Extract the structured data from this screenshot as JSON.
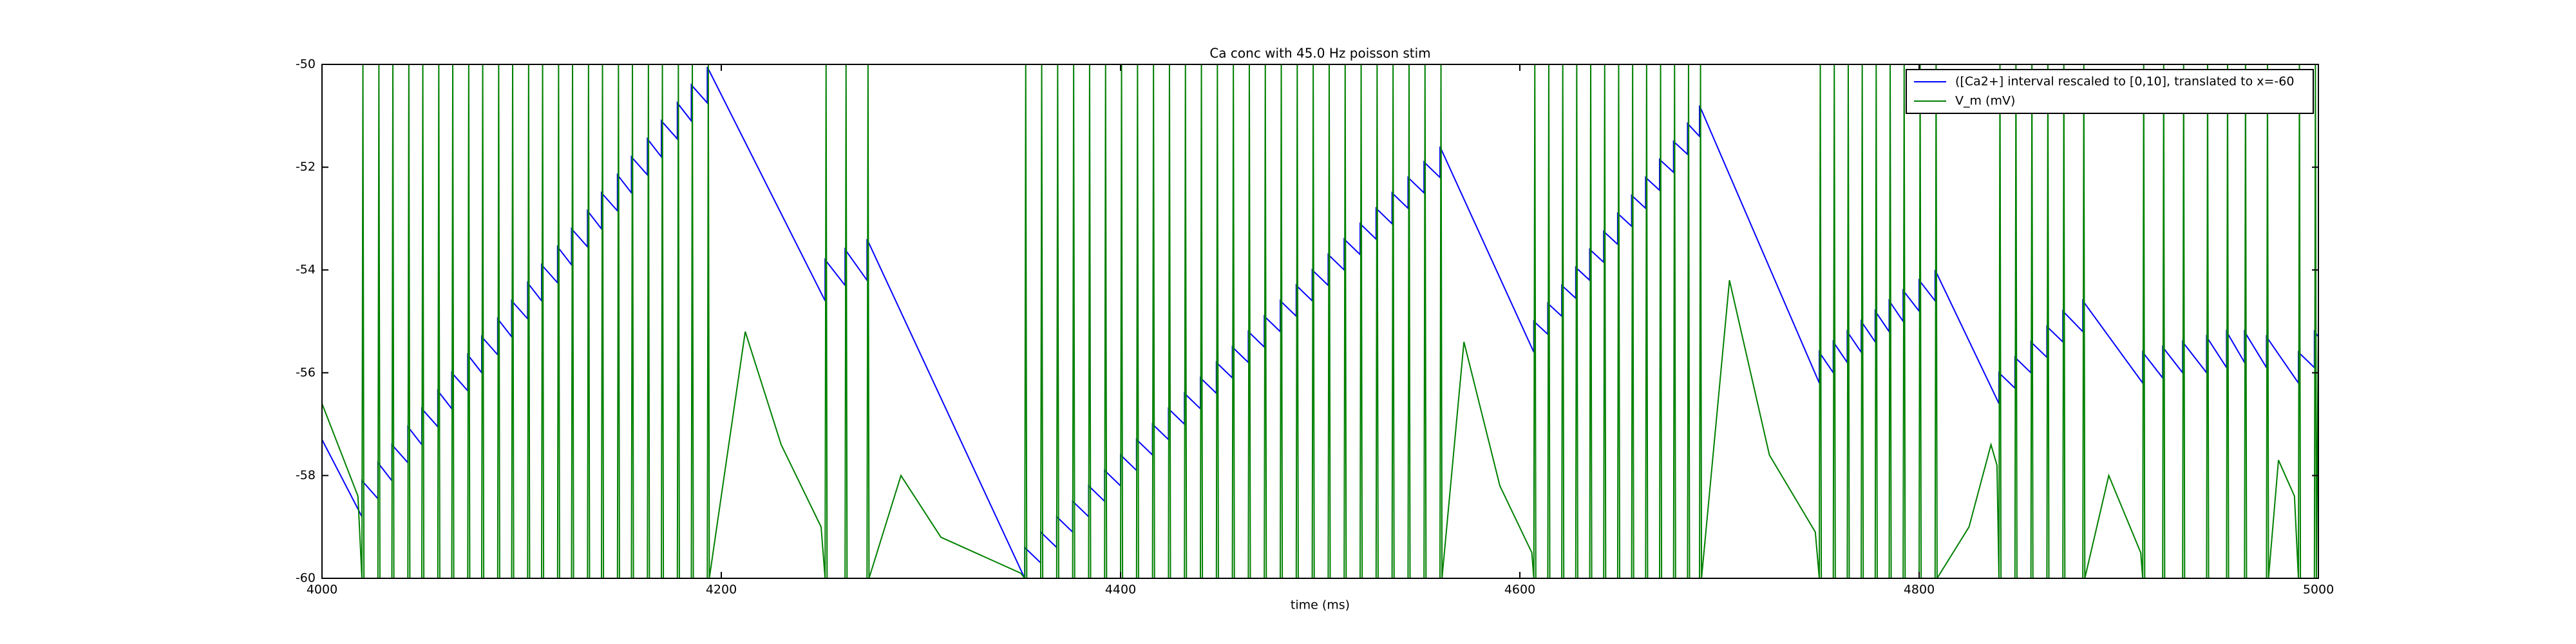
{
  "chart_data": {
    "type": "line",
    "title": "Ca conc with 45.0 Hz poisson stim",
    "xlabel": "time (ms)",
    "xlim": [
      4000,
      5000
    ],
    "ylim": [
      -60,
      -50
    ],
    "xticks": [
      4000,
      4200,
      4400,
      4600,
      4800,
      5000
    ],
    "yticks": [
      -60,
      -58,
      -56,
      -54,
      -52,
      -50
    ],
    "legend": "upper right",
    "series": [
      {
        "name": "([Ca2+] interval rescaled to [0,10], translated to x=-60",
        "color": "#0000ff",
        "x": [
          4000,
          4020,
          4020,
          4028,
          4028,
          4035,
          4035,
          4043,
          4043,
          4050,
          4050,
          4058,
          4058,
          4065,
          4065,
          4073,
          4073,
          4080,
          4080,
          4088,
          4088,
          4095,
          4095,
          4103,
          4103,
          4110,
          4110,
          4118,
          4118,
          4125,
          4125,
          4133,
          4133,
          4140,
          4140,
          4148,
          4148,
          4155,
          4155,
          4163,
          4163,
          4170,
          4170,
          4178,
          4178,
          4185,
          4185,
          4193,
          4193,
          4252,
          4252,
          4262,
          4262,
          4273,
          4273,
          4352,
          4352,
          4360,
          4360,
          4368,
          4368,
          4376,
          4376,
          4384,
          4384,
          4392,
          4392,
          4400,
          4400,
          4408,
          4408,
          4416,
          4416,
          4424,
          4424,
          4432,
          4432,
          4440,
          4440,
          4448,
          4448,
          4456,
          4456,
          4464,
          4464,
          4472,
          4472,
          4480,
          4480,
          4488,
          4488,
          4496,
          4496,
          4504,
          4504,
          4512,
          4512,
          4520,
          4520,
          4528,
          4528,
          4536,
          4536,
          4544,
          4544,
          4552,
          4552,
          4560,
          4560,
          4607,
          4607,
          4614,
          4614,
          4621,
          4621,
          4628,
          4628,
          4635,
          4635,
          4642,
          4642,
          4649,
          4649,
          4656,
          4656,
          4663,
          4663,
          4670,
          4670,
          4677,
          4677,
          4684,
          4684,
          4690,
          4690,
          4750,
          4750,
          4757,
          4757,
          4764,
          4764,
          4771,
          4771,
          4778,
          4778,
          4785,
          4785,
          4792,
          4792,
          4800,
          4800,
          4808,
          4808,
          4840,
          4840,
          4848,
          4848,
          4856,
          4856,
          4864,
          4864,
          4872,
          4872,
          4882,
          4882,
          4912,
          4912,
          4922,
          4922,
          4932,
          4932,
          4944,
          4944,
          4954,
          4954,
          4963,
          4963,
          4974,
          4974,
          4990,
          4990,
          4998,
          4998,
          5000
        ],
        "values": [
          -57.3,
          -58.8,
          -58.1,
          -58.45,
          -57.75,
          -58.1,
          -57.4,
          -57.75,
          -57.05,
          -57.4,
          -56.7,
          -57.05,
          -56.35,
          -56.7,
          -56.0,
          -56.35,
          -55.65,
          -56.0,
          -55.3,
          -55.65,
          -54.95,
          -55.3,
          -54.6,
          -54.95,
          -54.25,
          -54.6,
          -53.9,
          -54.25,
          -53.55,
          -53.9,
          -53.2,
          -53.55,
          -52.85,
          -53.2,
          -52.5,
          -52.85,
          -52.15,
          -52.5,
          -51.8,
          -52.15,
          -51.45,
          -51.8,
          -51.1,
          -51.45,
          -50.75,
          -51.1,
          -50.4,
          -50.75,
          -50.05,
          -54.6,
          -53.8,
          -54.3,
          -53.6,
          -54.2,
          -53.4,
          -60,
          -59.4,
          -59.7,
          -59.1,
          -59.4,
          -58.8,
          -59.1,
          -58.5,
          -58.8,
          -58.2,
          -58.5,
          -57.9,
          -58.2,
          -57.6,
          -57.9,
          -57.3,
          -57.6,
          -57.0,
          -57.3,
          -56.7,
          -57.0,
          -56.4,
          -56.7,
          -56.1,
          -56.4,
          -55.8,
          -56.1,
          -55.5,
          -55.8,
          -55.2,
          -55.5,
          -54.9,
          -55.2,
          -54.6,
          -54.9,
          -54.3,
          -54.6,
          -54.0,
          -54.3,
          -53.7,
          -54.0,
          -53.4,
          -53.7,
          -53.1,
          -53.4,
          -52.8,
          -53.1,
          -52.5,
          -52.8,
          -52.2,
          -52.5,
          -51.9,
          -52.2,
          -51.6,
          -55.6,
          -55.0,
          -55.25,
          -54.65,
          -54.9,
          -54.3,
          -54.55,
          -53.95,
          -54.2,
          -53.6,
          -53.85,
          -53.25,
          -53.5,
          -52.9,
          -53.15,
          -52.55,
          -52.8,
          -52.2,
          -52.45,
          -51.85,
          -52.1,
          -51.5,
          -51.75,
          -51.15,
          -51.4,
          -50.8,
          -56.2,
          -55.6,
          -56.0,
          -55.4,
          -55.8,
          -55.2,
          -55.6,
          -55.0,
          -55.4,
          -54.8,
          -55.2,
          -54.6,
          -55.0,
          -54.4,
          -54.8,
          -54.2,
          -54.6,
          -54.0,
          -56.6,
          -56.0,
          -56.3,
          -55.7,
          -56.0,
          -55.4,
          -55.7,
          -55.1,
          -55.4,
          -54.8,
          -55.2,
          -54.6,
          -56.2,
          -55.6,
          -56.1,
          -55.5,
          -56.0,
          -55.4,
          -56.0,
          -55.3,
          -55.9,
          -55.2,
          -55.8,
          -55.2,
          -55.9,
          -55.3,
          -56.2,
          -55.6,
          -55.9,
          -55.2,
          -55.3
        ]
      },
      {
        "name": "V_m (mV)",
        "color": "#008000",
        "x": [
          4000,
          4018,
          4020,
          4020.5,
          4021,
          4028,
          4028.5,
          4029,
          4035,
          4035.5,
          4036,
          4043,
          4043.5,
          4044,
          4050,
          4050.5,
          4051,
          4058,
          4058.5,
          4059,
          4065,
          4065.5,
          4066,
          4073,
          4073.5,
          4074,
          4080,
          4080.5,
          4081,
          4088,
          4088.5,
          4089,
          4095,
          4095.5,
          4096,
          4103,
          4103.5,
          4104,
          4110,
          4110.5,
          4111,
          4118,
          4118.5,
          4119,
          4125,
          4125.5,
          4126,
          4133,
          4133.5,
          4134,
          4140,
          4140.5,
          4141,
          4148,
          4148.5,
          4149,
          4155,
          4155.5,
          4156,
          4163,
          4163.5,
          4164,
          4170,
          4170.5,
          4171,
          4178,
          4178.5,
          4179,
          4185,
          4185.5,
          4186,
          4193,
          4193.5,
          4194,
          4212,
          4230,
          4250,
          4252,
          4252.5,
          4253,
          4262,
          4262.5,
          4263,
          4273,
          4273.5,
          4274,
          4290,
          4310,
          4350,
          4352,
          4352.5,
          4353,
          4360,
          4360.5,
          4361,
          4368,
          4368.5,
          4369,
          4376,
          4376.5,
          4377,
          4384,
          4384.5,
          4385,
          4392,
          4392.5,
          4393,
          4400,
          4400.5,
          4401,
          4408,
          4408.5,
          4409,
          4416,
          4416.5,
          4417,
          4424,
          4424.5,
          4425,
          4432,
          4432.5,
          4433,
          4440,
          4440.5,
          4441,
          4448,
          4448.5,
          4449,
          4456,
          4456.5,
          4457,
          4464,
          4464.5,
          4465,
          4472,
          4472.5,
          4473,
          4480,
          4480.5,
          4481,
          4488,
          4488.5,
          4489,
          4496,
          4496.5,
          4497,
          4504,
          4504.5,
          4505,
          4512,
          4512.5,
          4513,
          4520,
          4520.5,
          4521,
          4528,
          4528.5,
          4529,
          4536,
          4536.5,
          4537,
          4544,
          4544.5,
          4545,
          4552,
          4552.5,
          4553,
          4560,
          4560.5,
          4561,
          4572,
          4590,
          4606,
          4607,
          4607.5,
          4608,
          4614,
          4614.5,
          4615,
          4621,
          4621.5,
          4622,
          4628,
          4628.5,
          4629,
          4635,
          4635.5,
          4636,
          4642,
          4642.5,
          4643,
          4649,
          4649.5,
          4650,
          4656,
          4656.5,
          4657,
          4663,
          4663.5,
          4664,
          4670,
          4670.5,
          4671,
          4677,
          4677.5,
          4678,
          4684,
          4684.5,
          4685,
          4690,
          4690.5,
          4691,
          4705,
          4725,
          4748,
          4750,
          4750.5,
          4751,
          4757,
          4757.5,
          4758,
          4764,
          4764.5,
          4765,
          4771,
          4771.5,
          4772,
          4778,
          4778.5,
          4779,
          4785,
          4785.5,
          4786,
          4792,
          4792.5,
          4793,
          4800,
          4800.5,
          4801,
          4808,
          4808.5,
          4809,
          4825,
          4836,
          4839,
          4840,
          4840.5,
          4841,
          4848,
          4848.5,
          4849,
          4856,
          4856.5,
          4857,
          4864,
          4864.5,
          4865,
          4872,
          4872.5,
          4873,
          4882,
          4882.5,
          4883,
          4895,
          4911,
          4912,
          4912.5,
          4913,
          4922,
          4922.5,
          4923,
          4932,
          4932.5,
          4933,
          4944,
          4944.5,
          4945,
          4954,
          4954.5,
          4955,
          4963,
          4963.5,
          4964,
          4974,
          4974.5,
          4975,
          4980,
          4988,
          4990,
          4990.5,
          4991,
          4998,
          4998.5,
          4999,
          5000
        ],
        "values": [
          -56.6,
          -58.4,
          -60,
          -50,
          -60,
          -60,
          -50,
          -60,
          -60,
          -50,
          -60,
          -60,
          -50,
          -60,
          -60,
          -50,
          -60,
          -60,
          -50,
          -60,
          -60,
          -50,
          -60,
          -60,
          -50,
          -60,
          -60,
          -50,
          -60,
          -60,
          -50,
          -60,
          -60,
          -50,
          -60,
          -60,
          -50,
          -60,
          -60,
          -50,
          -60,
          -60,
          -50,
          -60,
          -60,
          -50,
          -60,
          -60,
          -50,
          -60,
          -60,
          -50,
          -60,
          -60,
          -50,
          -60,
          -60,
          -50,
          -60,
          -60,
          -50,
          -60,
          -60,
          -50,
          -60,
          -60,
          -50,
          -60,
          -60,
          -50,
          -60,
          -60,
          -50,
          -60,
          -55.2,
          -57.4,
          -59,
          -60,
          -50,
          -60,
          -60,
          -50,
          -60,
          -60,
          -50,
          -60,
          -58,
          -59.2,
          -59.9,
          -60,
          -50,
          -60,
          -60,
          -50,
          -60,
          -60,
          -50,
          -60,
          -60,
          -50,
          -60,
          -60,
          -50,
          -60,
          -60,
          -50,
          -60,
          -60,
          -50,
          -60,
          -60,
          -50,
          -60,
          -60,
          -50,
          -60,
          -60,
          -50,
          -60,
          -60,
          -50,
          -60,
          -60,
          -50,
          -60,
          -60,
          -50,
          -60,
          -60,
          -50,
          -60,
          -60,
          -50,
          -60,
          -60,
          -50,
          -60,
          -60,
          -50,
          -60,
          -60,
          -50,
          -60,
          -60,
          -50,
          -60,
          -60,
          -50,
          -60,
          -60,
          -50,
          -60,
          -60,
          -50,
          -60,
          -60,
          -50,
          -60,
          -60,
          -50,
          -60,
          -60,
          -50,
          -60,
          -60,
          -50,
          -60,
          -60,
          -50,
          -60,
          -55.4,
          -58.2,
          -59.5,
          -60,
          -50,
          -60,
          -60,
          -50,
          -60,
          -60,
          -50,
          -60,
          -60,
          -50,
          -60,
          -60,
          -50,
          -60,
          -60,
          -50,
          -60,
          -60,
          -50,
          -60,
          -60,
          -50,
          -60,
          -60,
          -50,
          -60,
          -60,
          -50,
          -60,
          -60,
          -50,
          -60,
          -60,
          -50,
          -60,
          -60,
          -50,
          -60,
          -54.2,
          -57.6,
          -59.1,
          -60,
          -50,
          -60,
          -60,
          -50,
          -60,
          -60,
          -50,
          -60,
          -60,
          -50,
          -60,
          -60,
          -50,
          -60,
          -60,
          -50,
          -60,
          -60,
          -50,
          -60,
          -60,
          -50,
          -60,
          -60,
          -50,
          -60,
          -59,
          -57.4,
          -57.8,
          -60,
          -50,
          -60,
          -60,
          -50,
          -60,
          -60,
          -50,
          -60,
          -60,
          -50,
          -60,
          -60,
          -50,
          -60,
          -60,
          -50,
          -60,
          -58,
          -59.5,
          -60,
          -50,
          -60,
          -60,
          -50,
          -60,
          -60,
          -50,
          -60,
          -60,
          -50,
          -60,
          -60,
          -50,
          -60,
          -60,
          -50,
          -60,
          -60,
          -50,
          -60,
          -57.7,
          -58.4,
          -60,
          -50,
          -60,
          -60,
          -50,
          -60,
          -55
        ]
      }
    ]
  }
}
